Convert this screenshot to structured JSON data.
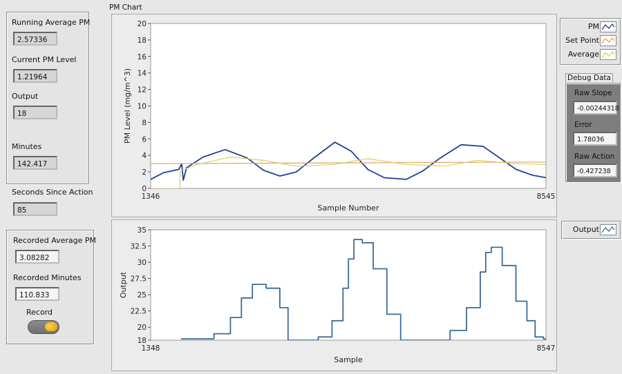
{
  "left_panel": {
    "running_avg_label": "Running Average PM",
    "running_avg_value": "2.57336",
    "current_pm_label": "Current PM Level",
    "current_pm_value": "1.21964",
    "output_label": "Output",
    "output_value": "18",
    "minutes_label": "Minutes",
    "minutes_value": "142.417"
  },
  "seconds": {
    "label": "Seconds Since Action",
    "value": "85"
  },
  "recorded": {
    "avg_label": "Recorded Average PM",
    "avg_value": "3.08282",
    "minutes_label": "Recorded Minutes",
    "minutes_value": "110.833",
    "record_label": "Record"
  },
  "pm_chart_title": "PM Chart",
  "legend": {
    "items": [
      {
        "label": "PM",
        "color": "#1f3f99"
      },
      {
        "label": "Set Point",
        "color": "#e8a060"
      },
      {
        "label": "Average",
        "color": "#d8d06a"
      }
    ]
  },
  "debug": {
    "tab_label": "Debug Data",
    "raw_slope_label": "Raw Slope",
    "raw_slope_value": "-0.00244318",
    "error_label": "Error",
    "error_value": "1.78036",
    "raw_action_label": "Raw Action",
    "raw_action_value": "-0.427238"
  },
  "output_legend": {
    "label": "Output"
  },
  "chart_data": [
    {
      "type": "line",
      "ylabel": "PM Level (mg/m^3)",
      "xlabel": "Sample Number",
      "x_range": [
        1346,
        8545
      ],
      "x_tick_labels": [
        "1346",
        "8545"
      ],
      "ylim": [
        0,
        20
      ],
      "y_ticks": [
        "0",
        "2",
        "4",
        "6",
        "8",
        "10",
        "12",
        "14",
        "16",
        "18",
        "20"
      ],
      "grid": false,
      "series": [
        {
          "name": "PM",
          "color": "#1f3f99",
          "x": [
            1346,
            1580,
            1860,
            1910,
            1940,
            2000,
            2300,
            2700,
            3100,
            3400,
            3700,
            4000,
            4300,
            4700,
            5000,
            5300,
            5600,
            6000,
            6300,
            6600,
            7000,
            7400,
            7700,
            8000,
            8300,
            8545
          ],
          "y": [
            1.1,
            1.9,
            2.3,
            3.0,
            1.0,
            2.5,
            3.8,
            4.7,
            3.7,
            2.2,
            1.5,
            2.0,
            3.6,
            5.6,
            4.5,
            2.3,
            1.3,
            1.1,
            2.1,
            3.6,
            5.3,
            5.1,
            3.7,
            2.3,
            1.6,
            1.3
          ]
        },
        {
          "name": "Set Point",
          "color": "#e8a060",
          "x": [
            1346,
            8545
          ],
          "y": [
            3.0,
            3.2
          ]
        },
        {
          "name": "Average",
          "color": "#d8d06a",
          "x": [
            1346,
            1880,
            1880,
            2200,
            2800,
            3400,
            4000,
            4700,
            5300,
            6000,
            6700,
            7300,
            8000,
            8545
          ],
          "y": [
            0,
            0,
            2.1,
            2.9,
            3.8,
            3.4,
            2.7,
            2.9,
            3.6,
            2.9,
            2.7,
            3.4,
            3.0,
            2.9
          ]
        }
      ]
    },
    {
      "type": "line",
      "ylabel": "Output",
      "xlabel": "Sample",
      "x_range": [
        1348,
        8547
      ],
      "x_tick_labels": [
        "1348",
        "8547"
      ],
      "ylim": [
        18,
        35
      ],
      "y_ticks": [
        "18",
        "20",
        "22.5",
        "25",
        "27.5",
        "30",
        "32.5",
        "35"
      ],
      "grid": false,
      "series": [
        {
          "name": "Output",
          "color": "#3a6a9a",
          "x": [
            1900,
            2250,
            2500,
            2800,
            3000,
            3200,
            3450,
            3700,
            3850,
            4000,
            4200,
            4400,
            4650,
            4850,
            4950,
            5050,
            5200,
            5400,
            5650,
            5900,
            6000,
            6050,
            6250,
            6500,
            6800,
            7100,
            7350,
            7450,
            7550,
            7750,
            8000,
            8200,
            8350,
            8500,
            8547
          ],
          "y": [
            18.2,
            18.2,
            19.0,
            21.5,
            24.5,
            26.6,
            26.0,
            23.0,
            18.0,
            18.0,
            18.0,
            18.5,
            21.0,
            26.0,
            30.5,
            33.5,
            33.0,
            29.0,
            22.0,
            18.0,
            18.0,
            18.0,
            18.0,
            18.0,
            19.5,
            23.0,
            28.5,
            31.5,
            32.3,
            29.5,
            24.0,
            21.0,
            18.5,
            18.2,
            18.0
          ]
        }
      ]
    }
  ]
}
